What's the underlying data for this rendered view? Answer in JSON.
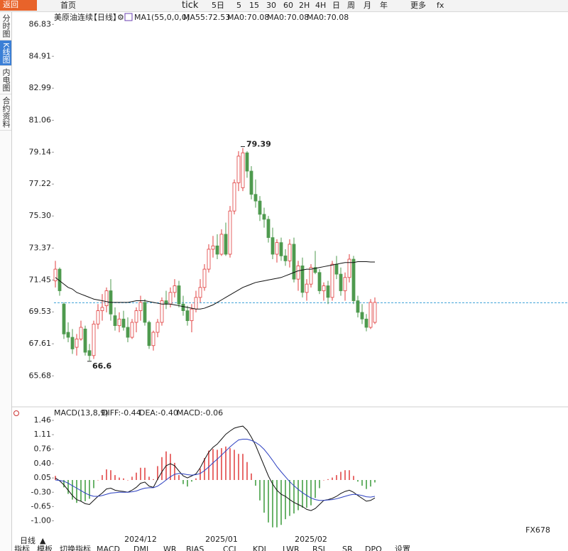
{
  "toolbar": [
    "返回",
    "首页",
    "tick",
    "5日",
    "5",
    "15",
    "30",
    "60",
    "2H",
    "4H",
    "日",
    "周",
    "月",
    "年",
    "更多",
    "fx"
  ],
  "side_tabs": [
    "分时图",
    "K线图",
    "内电图",
    "合约资料"
  ],
  "chart_data": [
    {
      "type": "candlestick",
      "title": "美原油连续",
      "period": "【日线】",
      "indicator": "MA1(55,0,0,0)",
      "categories": [
        null,
        null,
        null,
        null,
        null,
        null,
        null,
        null,
        null,
        null,
        null,
        null,
        null,
        null,
        null,
        null,
        null,
        null,
        null,
        null,
        "2024/12",
        null,
        null,
        null,
        null,
        null,
        null,
        null,
        null,
        null,
        null,
        null,
        null,
        null,
        null,
        null,
        null,
        null,
        null,
        "2025/01",
        null,
        null,
        null,
        null,
        null,
        null,
        null,
        null,
        null,
        null,
        null,
        null,
        null,
        null,
        null,
        null,
        null,
        null,
        null,
        null,
        "2025/02",
        null,
        null,
        null,
        null,
        null,
        null,
        null,
        null,
        null,
        null,
        null,
        null,
        null,
        null,
        null
      ],
      "open": [
        71.4,
        72.1,
        70.0,
        68.3,
        68.0,
        67.4,
        67.9,
        68.5,
        67.2,
        66.9,
        68.8,
        69.6,
        69.9,
        70.8,
        69.3,
        68.7,
        69.1,
        68.6,
        68.0,
        68.9,
        69.6,
        70.1,
        68.9,
        67.5,
        68.3,
        68.9,
        70.2,
        70.0,
        70.7,
        71.1,
        70.0,
        69.6,
        69.0,
        69.7,
        70.4,
        71.0,
        72.1,
        73.3,
        73.5,
        73.0,
        74.2,
        73.0,
        75.6,
        77.3,
        77.0,
        79.1,
        78.0,
        76.6,
        76.2,
        75.4,
        75.1,
        74.0,
        73.0,
        73.7,
        72.9,
        72.6,
        73.6,
        71.5,
        72.3,
        70.7,
        71.2,
        72.2,
        71.9,
        70.8,
        71.1,
        70.4,
        72.4,
        71.8,
        70.8,
        71.6,
        72.7,
        70.2,
        69.5,
        69.1,
        68.6,
        68.9
      ],
      "high": [
        72.6,
        72.2,
        70.1,
        68.9,
        68.5,
        68.2,
        69.0,
        68.7,
        67.6,
        69.0,
        70.0,
        70.6,
        71.0,
        71.5,
        69.8,
        69.5,
        69.6,
        69.2,
        69.1,
        69.8,
        70.5,
        70.3,
        69.0,
        68.4,
        69.1,
        70.4,
        70.8,
        71.0,
        71.5,
        71.4,
        70.5,
        69.9,
        70.0,
        70.8,
        71.5,
        72.4,
        73.6,
        74.1,
        74.2,
        74.5,
        74.9,
        75.9,
        77.5,
        79.2,
        79.39,
        79.2,
        78.3,
        77.5,
        76.5,
        75.8,
        75.3,
        74.6,
        73.9,
        74.0,
        73.3,
        73.9,
        74.0,
        72.6,
        72.8,
        71.5,
        72.4,
        73.2,
        72.1,
        71.3,
        71.4,
        72.6,
        72.9,
        72.2,
        71.9,
        73.0,
        72.9,
        70.5,
        70.0,
        69.4,
        70.3,
        70.4
      ],
      "low": [
        71.0,
        70.5,
        67.9,
        67.7,
        67.0,
        66.9,
        67.8,
        66.9,
        66.6,
        66.7,
        68.5,
        69.0,
        69.5,
        69.0,
        68.4,
        68.3,
        68.4,
        67.7,
        67.9,
        68.3,
        69.0,
        68.7,
        67.3,
        67.2,
        68.0,
        68.7,
        69.7,
        69.8,
        70.4,
        69.8,
        69.3,
        68.7,
        68.3,
        69.5,
        70.1,
        70.8,
        71.9,
        72.8,
        72.7,
        72.9,
        72.9,
        72.8,
        75.4,
        76.8,
        76.8,
        77.6,
        76.3,
        75.8,
        75.0,
        74.6,
        73.7,
        72.7,
        72.5,
        72.6,
        72.3,
        72.2,
        71.3,
        70.8,
        70.4,
        70.2,
        71.0,
        71.8,
        70.6,
        70.2,
        70.0,
        70.2,
        71.5,
        70.5,
        70.2,
        71.3,
        70.0,
        69.2,
        68.8,
        68.36,
        68.5,
        68.8
      ],
      "close": [
        72.1,
        70.8,
        68.2,
        68.0,
        67.3,
        67.9,
        68.6,
        67.1,
        66.9,
        68.8,
        69.6,
        69.8,
        70.8,
        69.4,
        68.7,
        69.1,
        68.6,
        68.0,
        68.9,
        69.6,
        70.1,
        68.9,
        67.5,
        68.3,
        68.9,
        70.2,
        70.0,
        70.7,
        71.1,
        70.0,
        69.6,
        69.0,
        69.7,
        70.4,
        71.0,
        72.1,
        73.3,
        73.5,
        73.0,
        74.2,
        73.0,
        75.6,
        77.3,
        78.9,
        79.1,
        78.0,
        76.6,
        76.2,
        75.4,
        75.1,
        74.0,
        73.0,
        73.7,
        72.9,
        72.6,
        73.6,
        71.5,
        72.3,
        70.7,
        71.2,
        72.2,
        71.9,
        70.8,
        71.1,
        70.4,
        72.4,
        71.8,
        70.8,
        71.6,
        72.7,
        70.2,
        69.5,
        69.1,
        68.6,
        70.1,
        70.1
      ],
      "up_color": "#e03c3c",
      "down_color": "#4e9a4e",
      "series": [
        {
          "name": "MA55:72.53",
          "color": "#111111",
          "values": [
            71.6,
            71.4,
            71.2,
            71.0,
            70.9,
            70.7,
            70.6,
            70.5,
            70.4,
            70.3,
            70.25,
            70.2,
            70.15,
            70.1,
            70.1,
            70.1,
            70.1,
            70.1,
            70.15,
            70.2,
            70.2,
            70.2,
            70.15,
            70.1,
            70.05,
            70.0,
            70.0,
            70.0,
            69.95,
            69.9,
            69.85,
            69.8,
            69.75,
            69.7,
            69.7,
            69.75,
            69.85,
            69.95,
            70.1,
            70.25,
            70.4,
            70.55,
            70.7,
            70.85,
            71.0,
            71.1,
            71.2,
            71.3,
            71.35,
            71.4,
            71.45,
            71.5,
            71.55,
            71.6,
            71.7,
            71.8,
            71.9,
            72.0,
            72.05,
            72.1,
            72.1,
            72.15,
            72.2,
            72.25,
            72.3,
            72.35,
            72.4,
            72.45,
            72.5,
            72.5,
            72.5,
            72.55,
            72.55,
            72.55,
            72.53,
            72.53
          ]
        }
      ],
      "extra_labels": [
        {
          "text": "MA0:70.08",
          "color": "#1a1aa6"
        },
        {
          "text": "MA0:70.08",
          "color": "#d81bd8"
        },
        {
          "text": "MA0:70.08",
          "color": "#f08a1c"
        }
      ],
      "last_price": 70.08,
      "last_price_color": "#3aa0d8",
      "ylim": [
        63.9,
        87.1
      ],
      "yticks": [
        86.83,
        84.91,
        82.99,
        81.06,
        79.14,
        77.22,
        {
          "value": 75.3,
          "label": "75.30"
        },
        73.37,
        71.45,
        69.53,
        67.61,
        65.68
      ],
      "grid": false
    },
    {
      "type": "macd",
      "title": "MACD(13,8,9)",
      "series": [
        {
          "name": "DIFF:-0.44",
          "color": "#111111",
          "values": [
            0.05,
            -0.02,
            -0.12,
            -0.25,
            -0.38,
            -0.48,
            -0.52,
            -0.58,
            -0.6,
            -0.5,
            -0.4,
            -0.32,
            -0.22,
            -0.2,
            -0.25,
            -0.27,
            -0.28,
            -0.3,
            -0.25,
            -0.18,
            -0.08,
            -0.05,
            -0.15,
            -0.18,
            0.02,
            0.2,
            0.35,
            0.4,
            0.35,
            0.22,
            0.1,
            0.05,
            0.1,
            0.15,
            0.3,
            0.5,
            0.68,
            0.8,
            0.88,
            1.0,
            1.12,
            1.2,
            1.27,
            1.3,
            1.32,
            1.22,
            1.05,
            0.85,
            0.6,
            0.35,
            0.1,
            -0.1,
            -0.25,
            -0.35,
            -0.4,
            -0.48,
            -0.55,
            -0.6,
            -0.65,
            -0.72,
            -0.75,
            -0.7,
            -0.6,
            -0.5,
            -0.48,
            -0.45,
            -0.4,
            -0.33,
            -0.28,
            -0.25,
            -0.3,
            -0.38,
            -0.45,
            -0.52,
            -0.5,
            -0.44
          ]
        },
        {
          "name": "DEA:-0.40",
          "color": "#2b3fc0",
          "values": [
            0.0,
            -0.01,
            -0.03,
            -0.08,
            -0.14,
            -0.2,
            -0.26,
            -0.32,
            -0.37,
            -0.4,
            -0.4,
            -0.38,
            -0.35,
            -0.32,
            -0.31,
            -0.3,
            -0.3,
            -0.3,
            -0.29,
            -0.27,
            -0.23,
            -0.2,
            -0.19,
            -0.19,
            -0.15,
            -0.08,
            0.0,
            0.08,
            0.14,
            0.16,
            0.15,
            0.13,
            0.12,
            0.13,
            0.16,
            0.23,
            0.32,
            0.42,
            0.51,
            0.61,
            0.71,
            0.81,
            0.9,
            0.98,
            1.0,
            1.0,
            0.97,
            0.92,
            0.85,
            0.75,
            0.62,
            0.48,
            0.33,
            0.2,
            0.08,
            -0.04,
            -0.14,
            -0.23,
            -0.31,
            -0.38,
            -0.44,
            -0.48,
            -0.5,
            -0.5,
            -0.49,
            -0.48,
            -0.46,
            -0.43,
            -0.4,
            -0.37,
            -0.35,
            -0.36,
            -0.38,
            -0.41,
            -0.42,
            -0.4
          ]
        }
      ],
      "histogram_label": "MACD:-0.06",
      "histogram_label_color": "#d81bd8",
      "histogram": [
        0.1,
        -0.02,
        -0.18,
        -0.34,
        -0.48,
        -0.56,
        -0.52,
        -0.52,
        -0.46,
        -0.2,
        0.0,
        0.12,
        0.26,
        0.24,
        0.12,
        0.06,
        0.04,
        0.0,
        0.08,
        0.18,
        0.3,
        0.3,
        0.08,
        0.02,
        0.34,
        0.56,
        0.7,
        0.64,
        0.42,
        0.12,
        -0.1,
        -0.16,
        -0.04,
        0.04,
        0.28,
        0.54,
        0.72,
        0.76,
        0.74,
        0.78,
        0.82,
        0.78,
        0.74,
        0.64,
        0.64,
        0.44,
        0.16,
        -0.14,
        -0.5,
        -0.8,
        -1.04,
        -1.16,
        -1.16,
        -1.1,
        -0.96,
        -0.88,
        -0.82,
        -0.74,
        -0.68,
        -0.68,
        -0.62,
        -0.44,
        -0.2,
        0.0,
        0.02,
        0.06,
        0.12,
        0.2,
        0.24,
        0.24,
        0.1,
        -0.04,
        -0.14,
        -0.22,
        -0.16,
        -0.06
      ],
      "up_color": "#e03c3c",
      "down_color": "#3a9a3a",
      "ylim": [
        -1.2,
        1.6
      ],
      "yticks": [
        1.46,
        1.11,
        0.76,
        {
          "value": 0.4,
          "label": "0.40"
        },
        0.05,
        {
          "value": -0.3,
          "label": "-0.30"
        },
        -0.65,
        {
          "value": -1,
          "label": "-1.00"
        }
      ],
      "grid": false
    }
  ],
  "footer": {
    "period_button": "日线",
    "tabs": [
      "指标",
      "模板",
      "切换指标",
      "MACD",
      "DMI",
      "WR",
      "BIAS",
      "CCI",
      "KDJ",
      "LWR",
      "RSI",
      "SR",
      "DPO",
      "设置"
    ]
  },
  "watermark": "FX678"
}
